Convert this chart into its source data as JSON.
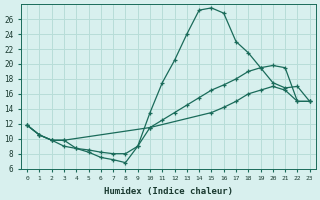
{
  "xlabel": "Humidex (Indice chaleur)",
  "bg_color": "#d8f0ee",
  "grid_color": "#b8ddd8",
  "line_color": "#1a6b5a",
  "xlim": [
    -0.5,
    23.5
  ],
  "ylim": [
    6,
    28
  ],
  "yticks": [
    6,
    8,
    10,
    12,
    14,
    16,
    18,
    20,
    22,
    24,
    26
  ],
  "xticks": [
    0,
    1,
    2,
    3,
    4,
    5,
    6,
    7,
    8,
    9,
    10,
    11,
    12,
    13,
    14,
    15,
    16,
    17,
    18,
    19,
    20,
    21,
    22,
    23
  ],
  "line1_x": [
    0,
    1,
    2,
    3,
    4,
    5,
    6,
    7,
    8,
    9,
    10,
    11,
    12,
    13,
    14,
    15,
    16,
    17,
    18,
    19,
    20,
    21,
    22,
    23
  ],
  "line1_y": [
    11.8,
    10.5,
    9.8,
    9.0,
    8.7,
    8.2,
    7.5,
    7.2,
    6.8,
    9.0,
    13.5,
    17.5,
    20.5,
    24.0,
    27.2,
    27.5,
    26.8,
    23.0,
    21.5,
    19.5,
    17.5,
    16.8,
    17.0,
    15.0
  ],
  "line2_x": [
    0,
    1,
    2,
    3,
    10,
    15,
    16,
    17,
    18,
    19,
    20,
    21,
    22,
    23
  ],
  "line2_y": [
    11.8,
    10.5,
    9.8,
    9.8,
    11.5,
    13.5,
    14.2,
    15.0,
    16.0,
    16.5,
    17.0,
    16.5,
    15.0,
    15.0
  ],
  "line3_x": [
    0,
    1,
    2,
    3,
    4,
    5,
    6,
    7,
    8,
    9,
    10,
    11,
    12,
    13,
    14,
    15,
    16,
    17,
    18,
    19,
    20,
    21,
    22,
    23
  ],
  "line3_y": [
    11.8,
    10.5,
    9.8,
    9.8,
    8.7,
    8.5,
    8.2,
    8.0,
    8.0,
    9.0,
    11.5,
    12.5,
    13.5,
    14.5,
    15.5,
    16.5,
    17.2,
    18.0,
    19.0,
    19.5,
    19.8,
    19.5,
    15.0,
    15.0
  ]
}
